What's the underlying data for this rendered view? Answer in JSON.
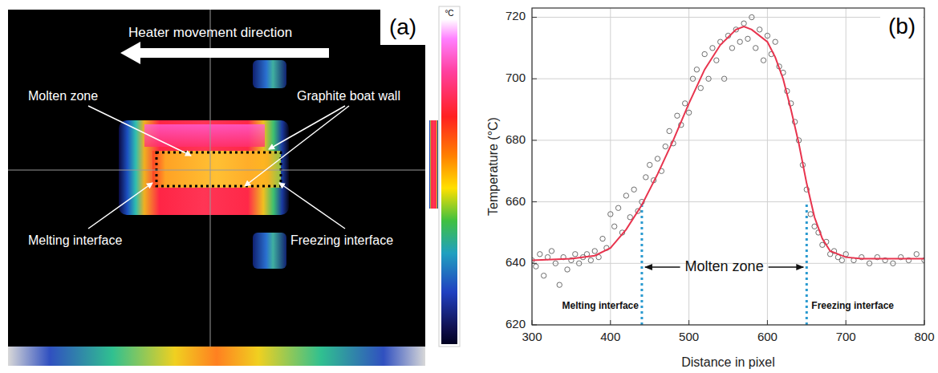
{
  "chart_data": {
    "type": "scatter",
    "panel_label": "(b)",
    "x_label": "Distance in pixel",
    "y_label": "Temperature (°C)",
    "xlim": [
      300,
      800
    ],
    "ylim": [
      620,
      723
    ],
    "xticks": [
      300,
      400,
      500,
      600,
      700,
      800
    ],
    "yticks": [
      620,
      640,
      660,
      680,
      700,
      720
    ],
    "grid": true,
    "series": [
      {
        "type": "scatter",
        "marker": "circle",
        "color": "#6e6e6e",
        "x": [
          300,
          305,
          310,
          315,
          320,
          325,
          330,
          335,
          340,
          345,
          350,
          355,
          360,
          365,
          370,
          375,
          380,
          385,
          390,
          395,
          400,
          405,
          410,
          415,
          420,
          425,
          430,
          435,
          440,
          445,
          450,
          455,
          460,
          465,
          470,
          475,
          480,
          485,
          490,
          495,
          500,
          505,
          510,
          515,
          520,
          525,
          530,
          535,
          540,
          545,
          550,
          555,
          560,
          565,
          570,
          575,
          580,
          585,
          590,
          595,
          600,
          605,
          610,
          615,
          620,
          625,
          630,
          635,
          640,
          645,
          650,
          655,
          660,
          665,
          670,
          675,
          680,
          685,
          690,
          695,
          700,
          710,
          720,
          730,
          740,
          750,
          760,
          770,
          780,
          790,
          800
        ],
        "values": [
          641,
          639,
          643,
          636,
          642,
          644,
          640,
          633,
          642,
          638,
          641,
          643,
          640,
          642,
          643,
          641,
          644,
          642,
          648,
          645,
          656,
          652,
          658,
          650,
          662,
          655,
          664,
          657,
          660,
          668,
          672,
          667,
          674,
          670,
          678,
          683,
          679,
          688,
          685,
          692,
          689,
          700,
          703,
          697,
          708,
          700,
          710,
          706,
          712,
          700,
          714,
          710,
          716,
          712,
          718,
          713,
          720,
          710,
          716,
          706,
          714,
          708,
          712,
          704,
          702,
          696,
          692,
          686,
          680,
          672,
          664,
          656,
          652,
          650,
          646,
          647,
          643,
          644,
          642,
          641,
          643,
          641,
          642,
          640,
          642,
          641,
          640,
          642,
          641,
          643,
          641
        ]
      },
      {
        "type": "line",
        "line_style": "solid",
        "color": "#e8344e",
        "x": [
          300,
          350,
          380,
          400,
          420,
          440,
          460,
          480,
          500,
          520,
          540,
          560,
          570,
          580,
          600,
          610,
          620,
          630,
          640,
          650,
          660,
          670,
          680,
          700,
          720,
          800
        ],
        "values": [
          641,
          641.5,
          642.5,
          645,
          651,
          659,
          669,
          680,
          692,
          703,
          711,
          716,
          717,
          716,
          712,
          707,
          700,
          690,
          679,
          666,
          655,
          648,
          644,
          642,
          641.5,
          641.5
        ]
      }
    ],
    "annotations": [
      {
        "text": "Molten zone"
      },
      {
        "text": "Melting interface",
        "x": 440,
        "y": 660
      },
      {
        "text": "Freezing interface",
        "x": 650,
        "y": 660
      }
    ]
  },
  "thermal_image": {
    "panel_label": "(a)",
    "direction_label": "Heater movement direction",
    "labels": [
      "Molten zone",
      "Graphite boat wall",
      "Melting interface",
      "Freezing interface"
    ],
    "colorbar_unit": "°C"
  }
}
